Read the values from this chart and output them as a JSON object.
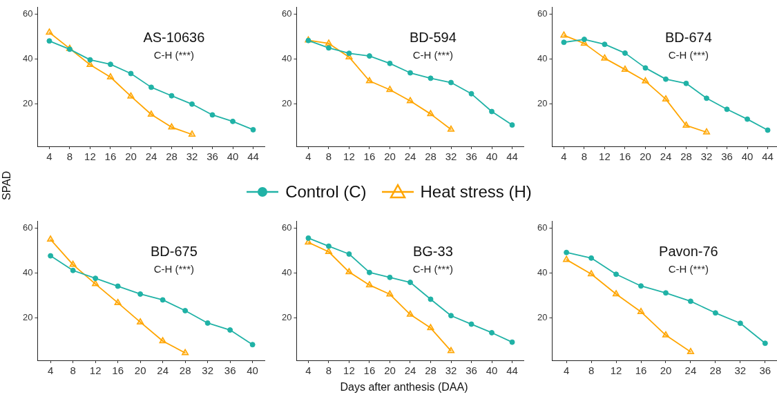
{
  "chart_data": [
    {
      "type": "line",
      "title": "AS-10636",
      "annotations": [
        "C-H (***)"
      ],
      "ylabel": "SPAD",
      "legend": "bottom",
      "xlim": [
        1.7,
        46.3
      ],
      "xticks": [
        4,
        8,
        12,
        16,
        20,
        24,
        28,
        32,
        36,
        40,
        44
      ],
      "ylim": [
        1.2,
        63
      ],
      "yticks": [
        20,
        40,
        60
      ],
      "series": [
        {
          "name": "Control (C)",
          "color": "#20b2a6",
          "marker": "circle",
          "x": [
            4,
            8,
            12,
            16,
            20,
            24,
            28,
            32,
            36,
            40,
            44
          ],
          "values": [
            48.1,
            44.4,
            39.7,
            37.7,
            33.6,
            27.5,
            23.7,
            20.0,
            15.2,
            12.3,
            8.6
          ]
        },
        {
          "name": "Heat stress (H)",
          "color": "#ffa500",
          "marker": "triangle",
          "x": [
            4,
            8,
            12,
            16,
            20,
            24,
            28,
            32
          ],
          "values": [
            51.9,
            44.7,
            37.5,
            32.0,
            23.5,
            15.4,
            9.7,
            6.5
          ]
        }
      ]
    },
    {
      "type": "line",
      "title": "BD-594",
      "annotations": [
        "C-H (***)"
      ],
      "xlim": [
        1.7,
        46.3
      ],
      "xticks": [
        4,
        8,
        12,
        16,
        20,
        24,
        28,
        32,
        36,
        40,
        44
      ],
      "ylim": [
        1.2,
        63
      ],
      "yticks": [
        20,
        40,
        60
      ],
      "series": [
        {
          "color": "#20b2a6",
          "marker": "circle",
          "x": [
            4,
            8,
            12,
            16,
            20,
            24,
            28,
            32,
            36,
            40,
            44
          ],
          "values": [
            48.3,
            45.0,
            42.6,
            41.4,
            38.1,
            33.9,
            31.5,
            29.6,
            24.6,
            16.7,
            10.7
          ]
        },
        {
          "color": "#ffa500",
          "marker": "triangle",
          "x": [
            4,
            8,
            12,
            16,
            20,
            24,
            28,
            32
          ],
          "values": [
            48.4,
            47.0,
            40.9,
            30.3,
            26.4,
            21.4,
            15.6,
            8.7
          ]
        }
      ]
    },
    {
      "type": "line",
      "title": "BD-674",
      "annotations": [
        "C-H (***)"
      ],
      "xlim": [
        1.7,
        46.3
      ],
      "xticks": [
        4,
        8,
        12,
        16,
        20,
        24,
        28,
        32,
        36,
        40,
        44
      ],
      "ylim": [
        1.2,
        63
      ],
      "yticks": [
        20,
        40,
        60
      ],
      "series": [
        {
          "color": "#20b2a6",
          "marker": "circle",
          "x": [
            4,
            8,
            12,
            16,
            20,
            24,
            28,
            32,
            36,
            40,
            44
          ],
          "values": [
            47.5,
            48.8,
            46.6,
            42.7,
            36.1,
            31.1,
            29.2,
            22.6,
            17.7,
            13.3,
            8.4
          ]
        },
        {
          "color": "#ffa500",
          "marker": "triangle",
          "x": [
            4,
            8,
            12,
            16,
            20,
            24,
            28,
            32
          ],
          "values": [
            50.6,
            47.0,
            40.4,
            35.4,
            30.2,
            22.2,
            10.5,
            7.5
          ]
        }
      ]
    },
    {
      "type": "line",
      "title": "BD-675",
      "annotations": [
        "C-H (***)"
      ],
      "xlim": [
        1.7,
        42.2
      ],
      "xticks": [
        4,
        8,
        12,
        16,
        20,
        24,
        28,
        32,
        36,
        40
      ],
      "ylim": [
        1.2,
        63
      ],
      "yticks": [
        20,
        40,
        60
      ],
      "series": [
        {
          "color": "#20b2a6",
          "marker": "circle",
          "x": [
            4,
            8,
            12,
            16,
            20,
            24,
            28,
            32,
            36,
            40
          ],
          "values": [
            47.7,
            41.2,
            37.7,
            34.2,
            30.7,
            28.1,
            23.3,
            17.8,
            14.7,
            8.2
          ]
        },
        {
          "color": "#ffa500",
          "marker": "triangle",
          "x": [
            4,
            8,
            12,
            16,
            20,
            24,
            28
          ],
          "values": [
            55.0,
            43.8,
            35.2,
            26.8,
            18.2,
            9.8,
            4.5
          ]
        }
      ]
    },
    {
      "type": "line",
      "title": "BG-33",
      "annotations": [
        "C-H (***)"
      ],
      "xlabel": "Days after anthesis (DAA)",
      "xlim": [
        1.7,
        46.3
      ],
      "xticks": [
        4,
        8,
        12,
        16,
        20,
        24,
        28,
        32,
        36,
        40,
        44
      ],
      "ylim": [
        1.2,
        63
      ],
      "yticks": [
        20,
        40,
        60
      ],
      "series": [
        {
          "color": "#20b2a6",
          "marker": "circle",
          "x": [
            4,
            8,
            12,
            16,
            20,
            24,
            28,
            32,
            36,
            40,
            44
          ],
          "values": [
            55.6,
            52.0,
            48.5,
            40.3,
            38.1,
            35.9,
            28.4,
            21.1,
            17.3,
            13.5,
            9.3
          ]
        },
        {
          "color": "#ffa500",
          "marker": "triangle",
          "x": [
            4,
            8,
            12,
            16,
            20,
            24,
            28,
            32
          ],
          "values": [
            53.7,
            49.5,
            40.5,
            34.7,
            30.6,
            21.6,
            15.6,
            5.4
          ]
        }
      ]
    },
    {
      "type": "line",
      "title": "Pavon-76",
      "annotations": [
        "C-H (***)"
      ],
      "xlim": [
        1.7,
        38.3
      ],
      "xticks": [
        4,
        8,
        12,
        16,
        20,
        24,
        28,
        32,
        36
      ],
      "ylim": [
        1.2,
        63
      ],
      "yticks": [
        20,
        40,
        60
      ],
      "series": [
        {
          "color": "#20b2a6",
          "marker": "circle",
          "x": [
            4,
            8,
            12,
            16,
            20,
            24,
            28,
            32,
            36
          ],
          "values": [
            49.2,
            46.7,
            39.5,
            34.3,
            31.2,
            27.5,
            22.3,
            17.7,
            8.8
          ]
        },
        {
          "color": "#ffa500",
          "marker": "triangle",
          "x": [
            4,
            8,
            12,
            16,
            20,
            24
          ],
          "values": [
            46.0,
            39.6,
            30.7,
            22.8,
            12.4,
            5.0
          ]
        }
      ]
    }
  ]
}
